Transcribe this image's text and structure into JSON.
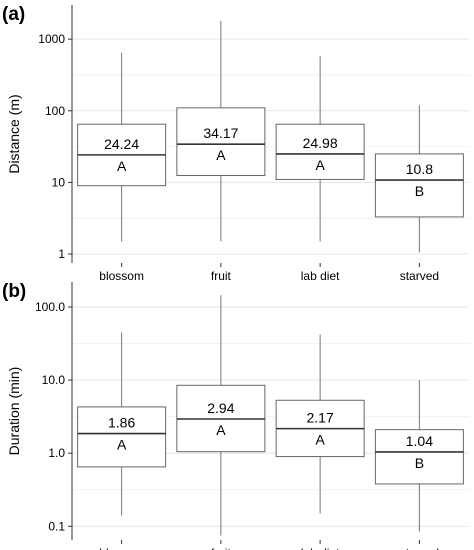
{
  "chart_data": [
    {
      "type": "box",
      "panel_label": "(a)",
      "ylabel": "Distance (m)",
      "yscale": "log",
      "ylim": [
        0.75,
        3000
      ],
      "yticks": [
        1,
        10,
        100,
        1000
      ],
      "ytick_labels": [
        "1",
        "10",
        "100",
        "1000"
      ],
      "grid": true,
      "categories": [
        "blossom",
        "fruit",
        "lab diet",
        "starved"
      ],
      "boxes": [
        {
          "min": 1.5,
          "q1": 9,
          "median": 24.24,
          "q3": 65,
          "max": 650,
          "median_label": "24.24",
          "group": "A"
        },
        {
          "min": 1.5,
          "q1": 12.5,
          "median": 34.17,
          "q3": 110,
          "max": 1800,
          "median_label": "34.17",
          "group": "A"
        },
        {
          "min": 1.5,
          "q1": 11,
          "median": 24.98,
          "q3": 65,
          "max": 580,
          "median_label": "24.98",
          "group": "A"
        },
        {
          "min": 1.05,
          "q1": 3.3,
          "median": 10.8,
          "q3": 25,
          "max": 120,
          "median_label": "10.8",
          "group": "B"
        }
      ]
    },
    {
      "type": "box",
      "panel_label": "(b)",
      "ylabel": "Duration (min)",
      "yscale": "log",
      "ylim": [
        0.065,
        220
      ],
      "yticks": [
        0.1,
        1,
        10,
        100
      ],
      "ytick_labels": [
        "0.1",
        "1.0",
        "10.0",
        "100.0"
      ],
      "grid": true,
      "categories": [
        "blossom",
        "fruit",
        "lab diet",
        "starved"
      ],
      "boxes": [
        {
          "min": 0.14,
          "q1": 0.65,
          "median": 1.86,
          "q3": 4.3,
          "max": 45,
          "median_label": "1.86",
          "group": "A"
        },
        {
          "min": 0.075,
          "q1": 1.05,
          "median": 2.94,
          "q3": 8.5,
          "max": 145,
          "median_label": "2.94",
          "group": "A"
        },
        {
          "min": 0.15,
          "q1": 0.9,
          "median": 2.17,
          "q3": 5.3,
          "max": 42,
          "median_label": "2.17",
          "group": "A"
        },
        {
          "min": 0.085,
          "q1": 0.38,
          "median": 1.04,
          "q3": 2.1,
          "max": 10,
          "median_label": "1.04",
          "group": "B"
        }
      ]
    }
  ]
}
